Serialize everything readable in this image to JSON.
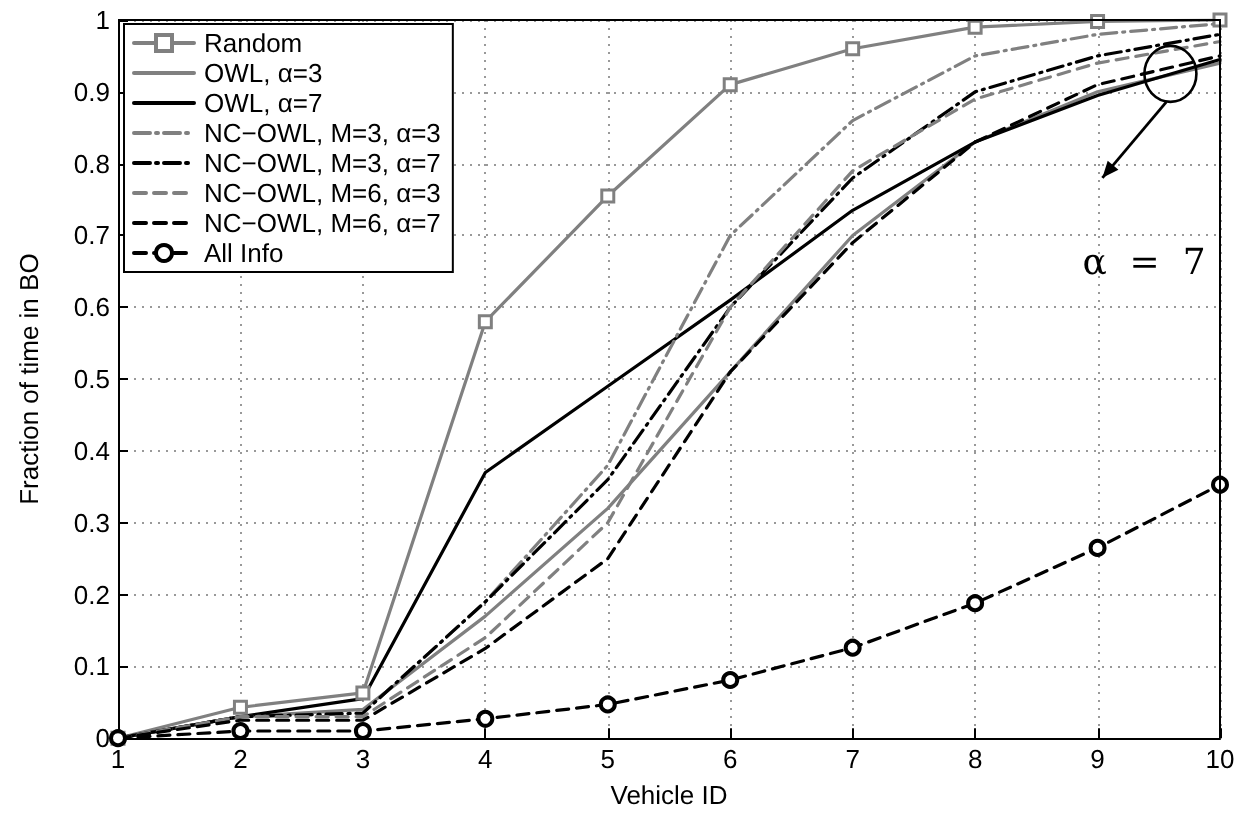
{
  "chart_data": {
    "type": "line",
    "xlabel": "Vehicle ID",
    "ylabel": "Fraction of time in BO",
    "x": [
      1,
      2,
      3,
      4,
      5,
      6,
      7,
      8,
      9,
      10
    ],
    "xlim": [
      1,
      10
    ],
    "xticks": [
      1,
      2,
      3,
      4,
      5,
      6,
      7,
      8,
      9,
      10
    ],
    "ylim": [
      0,
      1
    ],
    "yticks": [
      0,
      0.1,
      0.2,
      0.3,
      0.4,
      0.5,
      0.6,
      0.7,
      0.8,
      0.9,
      1
    ],
    "grid": true,
    "legend": "top left",
    "annotations": [
      "α  =  7"
    ],
    "series": [
      {
        "name": "Random",
        "color": "#808080",
        "marker": "square",
        "line_style": "solid",
        "values": [
          0,
          0.043,
          0.063,
          0.58,
          0.755,
          0.91,
          0.96,
          0.99,
          0.998,
          1.0
        ]
      },
      {
        "name": "OWL, α=3",
        "color": "#808080",
        "marker": "none",
        "line_style": "solid",
        "values": [
          0,
          0.03,
          0.04,
          0.17,
          0.32,
          0.51,
          0.7,
          0.83,
          0.9,
          0.94
        ]
      },
      {
        "name": "OWL, α=7",
        "color": "#000000",
        "marker": "none",
        "line_style": "solid",
        "values": [
          0,
          0.03,
          0.055,
          0.37,
          0.49,
          0.61,
          0.735,
          0.83,
          0.895,
          0.945
        ]
      },
      {
        "name": "NC−OWL, M=3, α=3",
        "color": "#808080",
        "marker": "none",
        "line_style": "dashdot",
        "values": [
          0,
          0.03,
          0.035,
          0.19,
          0.38,
          0.7,
          0.86,
          0.95,
          0.98,
          0.995
        ]
      },
      {
        "name": "NC−OWL, M=3, α=7",
        "color": "#000000",
        "marker": "none",
        "line_style": "dashdot",
        "values": [
          0,
          0.03,
          0.035,
          0.19,
          0.36,
          0.6,
          0.78,
          0.9,
          0.95,
          0.98
        ]
      },
      {
        "name": "NC−OWL, M=6, α=3",
        "color": "#808080",
        "marker": "none",
        "line_style": "dashed",
        "values": [
          0,
          0.03,
          0.03,
          0.14,
          0.3,
          0.6,
          0.79,
          0.89,
          0.94,
          0.97
        ]
      },
      {
        "name": "NC−OWL, M=6, α=7",
        "color": "#000000",
        "marker": "none",
        "line_style": "dashed",
        "values": [
          0,
          0.025,
          0.025,
          0.125,
          0.25,
          0.51,
          0.69,
          0.83,
          0.91,
          0.95
        ]
      },
      {
        "name": "All Info",
        "color": "#000000",
        "marker": "circle",
        "line_style": "dashed",
        "values": [
          0,
          0.01,
          0.01,
          0.027,
          0.047,
          0.081,
          0.126,
          0.188,
          0.265,
          0.353
        ]
      }
    ]
  }
}
